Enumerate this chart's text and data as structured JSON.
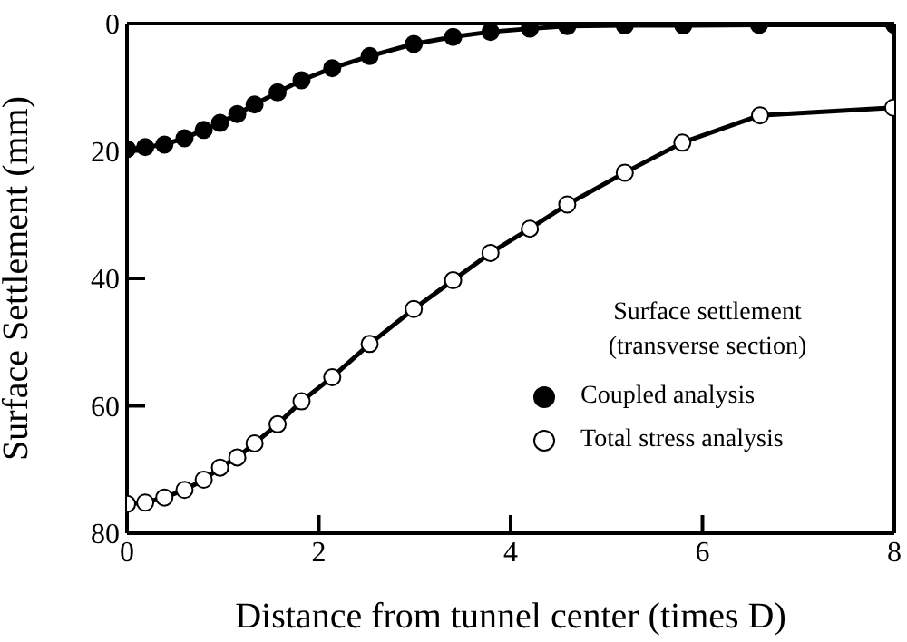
{
  "chart_data": {
    "type": "line",
    "xlabel": "Distance from tunnel center (times D)",
    "ylabel": "Surface Settlement (mm)",
    "legend_title": "Surface settlement\n(transverse section)",
    "xlim": [
      0,
      8
    ],
    "xticks": [
      0,
      2,
      4,
      6,
      8
    ],
    "ylim": [
      80,
      0
    ],
    "yticks": [
      0,
      20,
      40,
      60,
      80
    ],
    "grid": false,
    "legend": "bottom right",
    "marker": "circle",
    "line_style": "solid",
    "series": [
      {
        "name": "Coupled analysis",
        "color": "#000000",
        "x": [
          0,
          0.19,
          0.39,
          0.6,
          0.8,
          0.97,
          1.15,
          1.33,
          1.57,
          1.82,
          2.14,
          2.53,
          2.99,
          3.4,
          3.79,
          4.2,
          4.59,
          5.19,
          5.8,
          6.59,
          8
        ],
        "values": [
          19.7,
          19.4,
          19.0,
          18.0,
          16.7,
          15.6,
          14.2,
          12.7,
          10.8,
          8.9,
          7.0,
          5.1,
          3.2,
          2.1,
          1.3,
          0.8,
          0.4,
          0.3,
          0.3,
          0.2,
          0.2
        ]
      },
      {
        "name": "Total stress analysis",
        "color": "#ffffff",
        "x": [
          0,
          0.19,
          0.39,
          0.6,
          0.8,
          0.97,
          1.15,
          1.33,
          1.57,
          1.82,
          2.14,
          2.53,
          2.99,
          3.4,
          3.79,
          4.2,
          4.59,
          5.19,
          5.79,
          6.6,
          7.99
        ],
        "values": [
          75.4,
          75.2,
          74.4,
          73.2,
          71.6,
          69.7,
          68.1,
          65.9,
          62.9,
          59.3,
          55.5,
          50.3,
          44.8,
          40.3,
          36.0,
          32.2,
          28.4,
          23.4,
          18.7,
          14.4,
          13.2
        ]
      }
    ]
  }
}
